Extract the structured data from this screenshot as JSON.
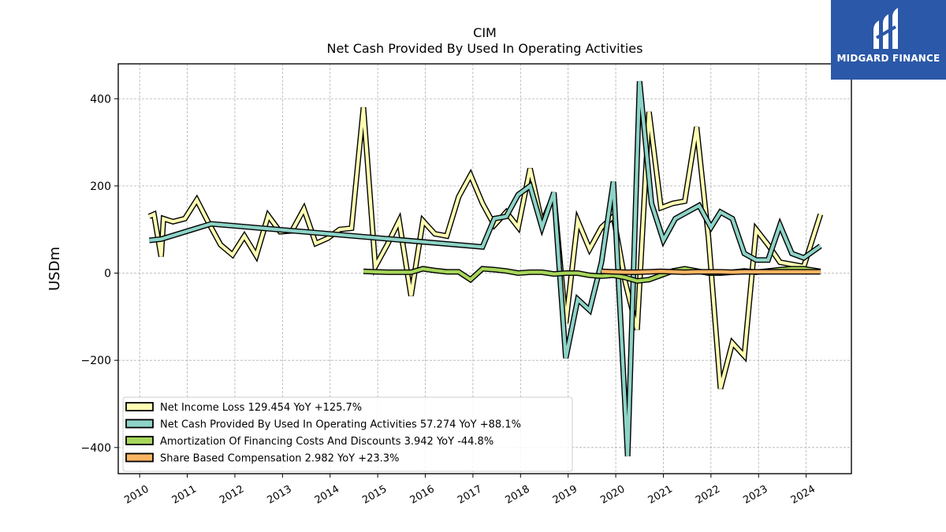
{
  "brand": {
    "name": "MIDGARD FINANCE"
  },
  "chart_data": {
    "type": "line",
    "title": "CIM",
    "subtitle": "Net Cash Provided By Used In Operating Activities",
    "ylabel": "USDm",
    "xlabel": "",
    "xlim": [
      2009.55,
      2024.95
    ],
    "ylim": [
      -460,
      480
    ],
    "yticks": [
      -400,
      -200,
      0,
      200,
      400
    ],
    "yticklabels": [
      "−400",
      "−200",
      "0",
      "200",
      "400"
    ],
    "xticks": [
      2010,
      2011,
      2012,
      2013,
      2014,
      2015,
      2016,
      2017,
      2018,
      2019,
      2020,
      2021,
      2022,
      2023,
      2024
    ],
    "xticklabels": [
      "2010",
      "2011",
      "2012",
      "2013",
      "2014",
      "2015",
      "2016",
      "2017",
      "2018",
      "2019",
      "2020",
      "2021",
      "2022",
      "2023",
      "2024"
    ],
    "grid": true,
    "legend_position": "lower-left",
    "series": [
      {
        "name": "Net Income Loss",
        "legend": "Net Income Loss  129.454 YoY +125.7%",
        "color": "#ffffb3",
        "x": [
          2010.2,
          2010.3,
          2010.45,
          2010.5,
          2010.7,
          2010.95,
          2011.2,
          2011.45,
          2011.7,
          2011.95,
          2012.2,
          2012.45,
          2012.7,
          2012.95,
          2013.2,
          2013.45,
          2013.7,
          2013.95,
          2014.2,
          2014.45,
          2014.7,
          2014.95,
          2015.2,
          2015.45,
          2015.7,
          2015.95,
          2016.2,
          2016.45,
          2016.7,
          2016.95,
          2017.2,
          2017.45,
          2017.7,
          2017.95,
          2018.2,
          2018.45,
          2018.7,
          2018.95,
          2019.2,
          2019.45,
          2019.7,
          2019.95,
          2020.2,
          2020.45,
          2020.7,
          2020.95,
          2021.2,
          2021.45,
          2021.7,
          2021.95,
          2022.2,
          2022.45,
          2022.7,
          2022.95,
          2023.2,
          2023.45,
          2023.7,
          2023.95,
          2024.3
        ],
        "values": [
          130,
          135,
          38,
          125,
          118,
          125,
          168,
          115,
          65,
          42,
          85,
          40,
          132,
          95,
          97,
          147,
          68,
          80,
          100,
          103,
          380,
          15,
          65,
          120,
          -52,
          120,
          90,
          85,
          175,
          225,
          160,
          110,
          140,
          105,
          240,
          115,
          180,
          -115,
          120,
          55,
          105,
          130,
          -20,
          -130,
          370,
          150,
          160,
          165,
          335,
          80,
          -265,
          -160,
          -190,
          100,
          65,
          25,
          20,
          15,
          135
        ]
      },
      {
        "name": "Net Cash Provided By Used In Operating Activities",
        "legend": "Net Cash Provided By Used In Operating Activities  57.274 YoY +88.1%",
        "color": "#8dd3c7",
        "x": [
          2010.2,
          2010.45,
          2011.5,
          2017.2,
          2017.45,
          2017.7,
          2017.95,
          2018.2,
          2018.45,
          2018.7,
          2018.95,
          2019.2,
          2019.45,
          2019.7,
          2019.95,
          2020.25,
          2020.5,
          2020.75,
          2021.0,
          2021.25,
          2021.5,
          2021.75,
          2022.0,
          2022.2,
          2022.45,
          2022.7,
          2022.95,
          2023.2,
          2023.45,
          2023.7,
          2023.95,
          2024.3
        ],
        "values": [
          75,
          78,
          113,
          60,
          125,
          130,
          180,
          200,
          105,
          185,
          -195,
          -60,
          -85,
          25,
          210,
          -420,
          440,
          160,
          75,
          125,
          140,
          155,
          105,
          140,
          125,
          45,
          30,
          30,
          110,
          45,
          35,
          62
        ]
      },
      {
        "name": "Amortization Of Financing Costs And Discounts",
        "legend": "Amortization Of Financing Costs And Discounts  3.942 YoY -44.8%",
        "color": "#a6d65a",
        "x": [
          2014.7,
          2014.95,
          2015.2,
          2015.45,
          2015.7,
          2015.95,
          2016.2,
          2016.45,
          2016.7,
          2016.95,
          2017.2,
          2017.45,
          2017.7,
          2017.95,
          2018.2,
          2018.45,
          2018.7,
          2018.95,
          2019.2,
          2019.45,
          2019.7,
          2019.95,
          2020.2,
          2020.45,
          2020.7,
          2020.95,
          2021.2,
          2021.45,
          2021.7,
          2021.95,
          2022.2,
          2022.45,
          2022.7,
          2022.95,
          2023.2,
          2023.45,
          2023.7,
          2023.95,
          2024.3
        ],
        "values": [
          4,
          3,
          2,
          2,
          2,
          10,
          6,
          3,
          3,
          -15,
          10,
          8,
          5,
          0,
          2,
          2,
          -2,
          0,
          0,
          -5,
          -7,
          -5,
          -10,
          -18,
          -15,
          -5,
          5,
          10,
          5,
          0,
          0,
          2,
          5,
          2,
          5,
          8,
          10,
          10,
          4
        ]
      },
      {
        "name": "Share Based Compensation",
        "legend": "Share Based Compensation  2.982 YoY +23.3%",
        "color": "#fdb462",
        "x": [
          2019.7,
          2019.95,
          2020.2,
          2020.45,
          2020.7,
          2020.95,
          2021.2,
          2021.45,
          2021.7,
          2021.95,
          2022.2,
          2022.45,
          2022.7,
          2022.95,
          2023.2,
          2023.45,
          2023.7,
          2023.95,
          2024.3
        ],
        "values": [
          4,
          3,
          2,
          2,
          3,
          4,
          3,
          2,
          3,
          3,
          3,
          2,
          3,
          3,
          3,
          3,
          3,
          3,
          3
        ]
      }
    ]
  }
}
